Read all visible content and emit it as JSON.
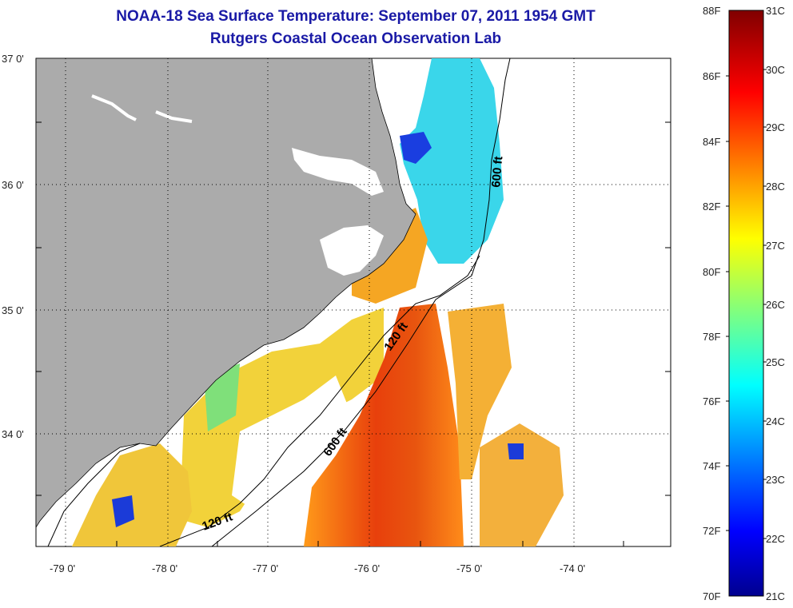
{
  "title": "NOAA-18 Sea Surface Temperature:  September 07, 2011 1954 GMT",
  "subtitle": "Rutgers Coastal Ocean Observation Lab",
  "map": {
    "lon_labels": [
      "-79 0'",
      "-78 0'",
      "-77 0'",
      "-76 0'",
      "-75 0'",
      "-74 0'"
    ],
    "lat_labels": [
      "37 0'",
      "36 0'",
      "35 0'",
      "34 0'"
    ],
    "contour_labels": [
      "600 ft",
      "120 ft",
      "600 ft",
      "120 ft"
    ],
    "land_color": "#ababab"
  },
  "colorbar": {
    "f_labels": [
      "88F",
      "86F",
      "84F",
      "82F",
      "80F",
      "78F",
      "76F",
      "74F",
      "72F",
      "70F"
    ],
    "c_labels": [
      "31C",
      "30C",
      "29C",
      "28C",
      "27C",
      "26C",
      "25C",
      "24C",
      "23C",
      "22C",
      "21C"
    ],
    "colormap": "jet"
  }
}
